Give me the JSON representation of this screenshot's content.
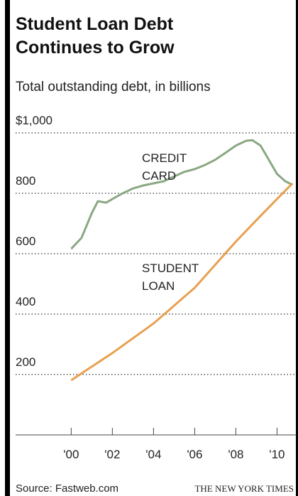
{
  "chart_data": {
    "type": "line",
    "title": "Student Loan Debt Continues to Grow",
    "subtitle": "Total outstanding debt, in billions",
    "source": "Source: Fastweb.com",
    "credit": "THE NEW YORK TIMES",
    "series": [
      {
        "name": "CREDIT CARD",
        "color": "#8aa882",
        "x": [
          2000,
          2000.5,
          2001,
          2001.3,
          2001.7,
          2002,
          2002.5,
          2003,
          2003.5,
          2004,
          2004.5,
          2005,
          2005.5,
          2006,
          2006.5,
          2007,
          2007.5,
          2008,
          2008.5,
          2008.8,
          2009.2,
          2009.6,
          2010,
          2010.4,
          2010.75
        ],
        "values": [
          616,
          652,
          734,
          774,
          769,
          781,
          800,
          816,
          826,
          833,
          840,
          856,
          871,
          880,
          894,
          911,
          934,
          958,
          974,
          976,
          958,
          911,
          864,
          840,
          828
        ]
      },
      {
        "name": "STUDENT LOAN",
        "color": "#e8a050",
        "x": [
          2000,
          2002,
          2004,
          2006,
          2008,
          2009,
          2010,
          2010.75
        ],
        "values": [
          181,
          271,
          369,
          487,
          640,
          711,
          781,
          833
        ]
      }
    ],
    "xlim": [
      1997.3,
      2010.95
    ],
    "xticks": [
      {
        "value": 2000,
        "label": "'00"
      },
      {
        "value": 2002,
        "label": "'02"
      },
      {
        "value": 2004,
        "label": "'04"
      },
      {
        "value": 2006,
        "label": "'06"
      },
      {
        "value": 2008,
        "label": "'08"
      },
      {
        "value": 2010,
        "label": "'10"
      }
    ],
    "ylim": [
      0,
      1000
    ],
    "yticks": [
      200,
      400,
      600,
      800,
      {
        "value": 1000,
        "label": "$1,000"
      }
    ],
    "grid": true
  }
}
